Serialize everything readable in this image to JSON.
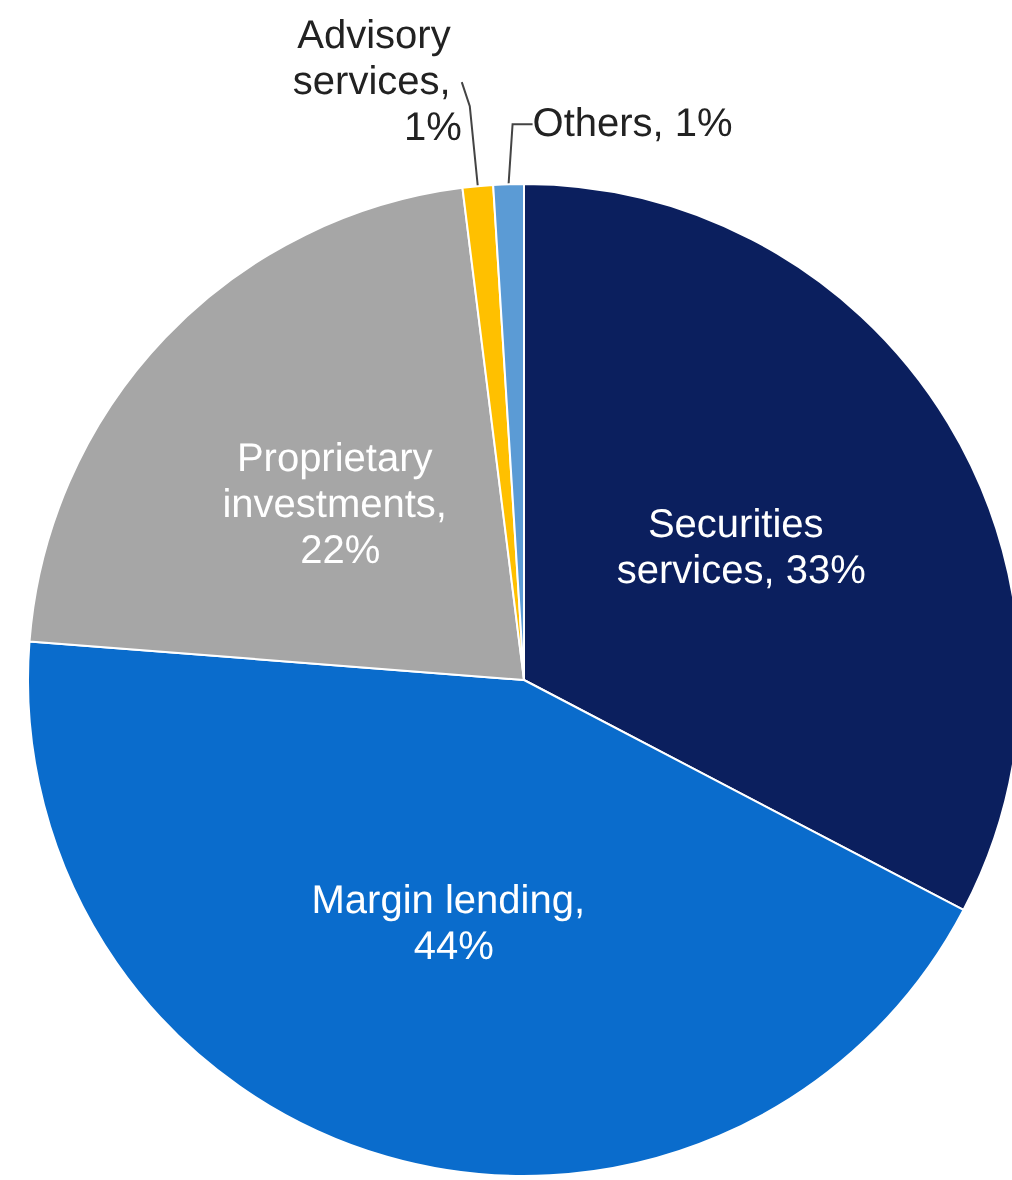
{
  "chart_data": {
    "type": "pie",
    "categories": [
      "Securities services, 33%",
      "Margin lending, 44%",
      "Proprietary investments, 22%",
      "Advisory services, 1%",
      "Others, 1%"
    ],
    "values": [
      33,
      44,
      22,
      1,
      1
    ],
    "colors": [
      "#0b1f5e",
      "#0a6ccc",
      "#a6a6a6",
      "#ffc000",
      "#5b9bd5"
    ],
    "legend": false
  }
}
